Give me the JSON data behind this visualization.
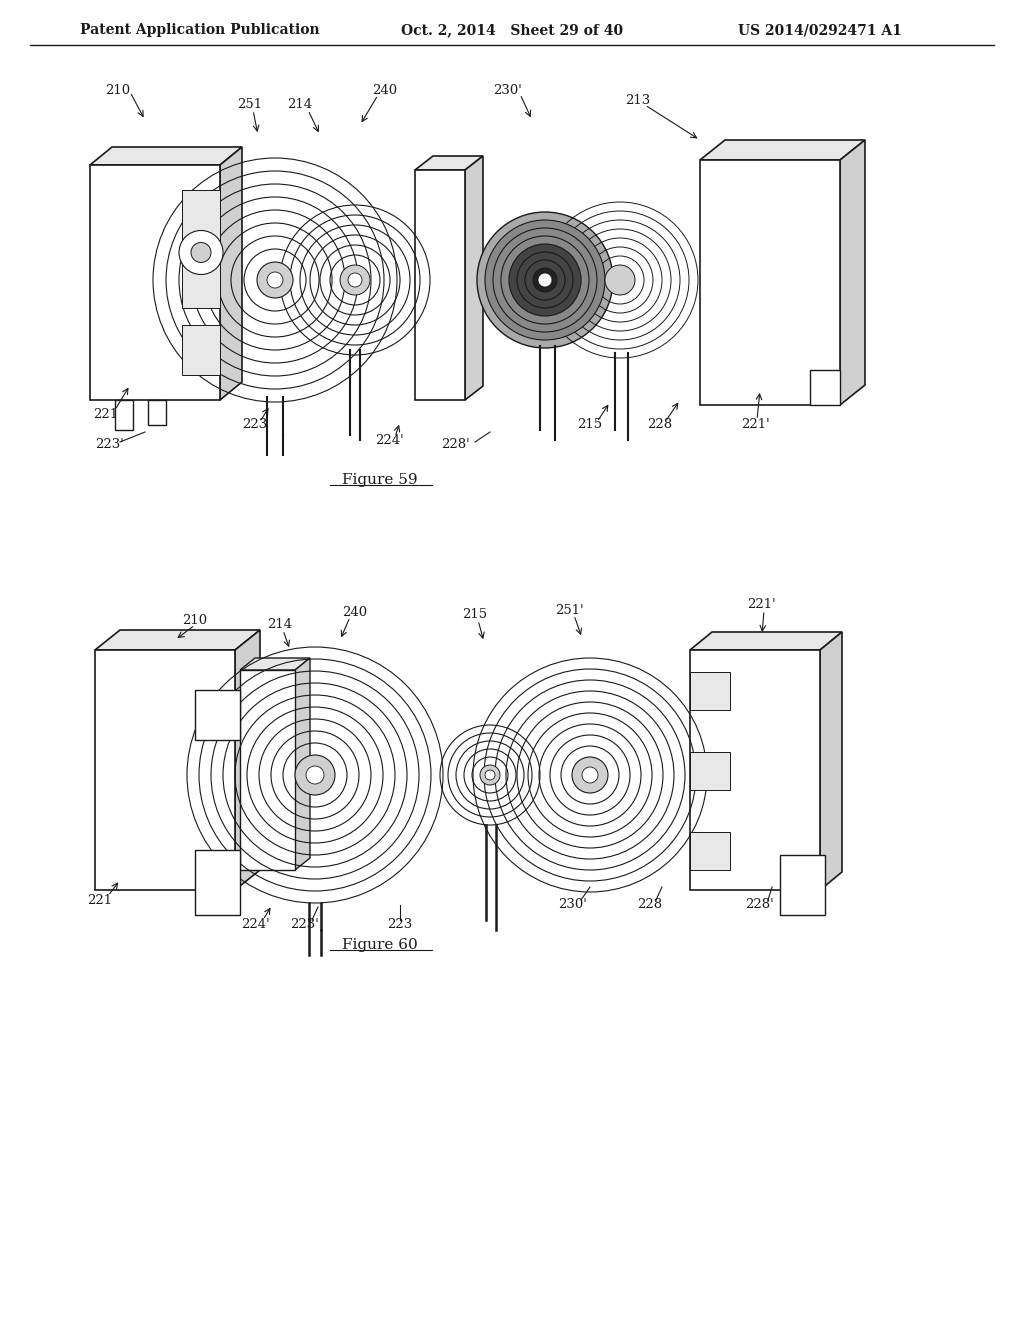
{
  "title_left": "Patent Application Publication",
  "title_center": "Oct. 2, 2014   Sheet 29 of 40",
  "title_right": "US 2014/0292471 A1",
  "figure59_label": "Figure 59",
  "figure60_label": "Figure 60",
  "bg": "#ffffff",
  "lc": "#1a1a1a",
  "gray1": "#e8e8e8",
  "gray2": "#d0d0d0",
  "gray3": "#b8b8b8",
  "dark_coil": "#555555",
  "light_coil": "#aaaaaa"
}
